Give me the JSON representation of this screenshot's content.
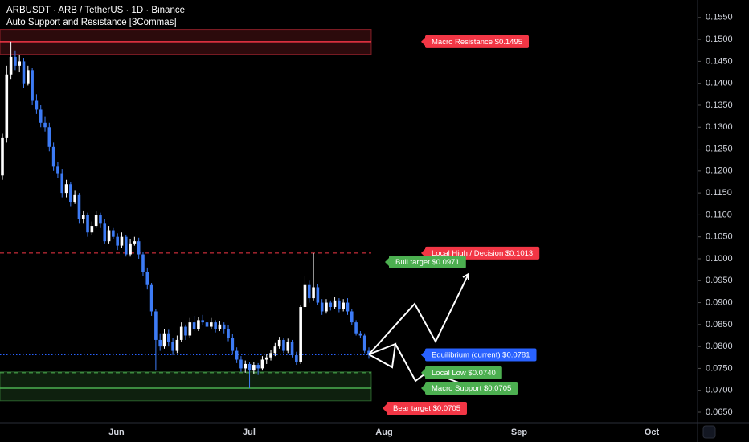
{
  "chart_data": {
    "type": "candlestick",
    "title": "ARBUSDT · ARB / TetherUS · 1D · Binance",
    "subtitle": "Auto Support and Resistance [3Commas]",
    "up_color": "#ffffff",
    "down_color": "#3d7bf5",
    "ohlc": [
      [
        0.119,
        0.1285,
        0.118,
        0.1275
      ],
      [
        0.1275,
        0.144,
        0.1265,
        0.142
      ],
      [
        0.142,
        0.1495,
        0.141,
        0.146
      ],
      [
        0.146,
        0.1475,
        0.143,
        0.144
      ],
      [
        0.144,
        0.1465,
        0.1425,
        0.145
      ],
      [
        0.145,
        0.1458,
        0.139,
        0.14
      ],
      [
        0.14,
        0.144,
        0.1395,
        0.143
      ],
      [
        0.143,
        0.1435,
        0.135,
        0.136
      ],
      [
        0.136,
        0.1375,
        0.133,
        0.134
      ],
      [
        0.134,
        0.135,
        0.13,
        0.131
      ],
      [
        0.131,
        0.1325,
        0.129,
        0.13
      ],
      [
        0.13,
        0.131,
        0.1245,
        0.1255
      ],
      [
        0.1255,
        0.1265,
        0.12,
        0.121
      ],
      [
        0.121,
        0.122,
        0.1185,
        0.1195
      ],
      [
        0.1195,
        0.1205,
        0.114,
        0.115
      ],
      [
        0.115,
        0.118,
        0.114,
        0.117
      ],
      [
        0.117,
        0.1175,
        0.112,
        0.113
      ],
      [
        0.113,
        0.1155,
        0.1125,
        0.1145
      ],
      [
        0.1145,
        0.115,
        0.108,
        0.109
      ],
      [
        0.109,
        0.111,
        0.108,
        0.11
      ],
      [
        0.11,
        0.1105,
        0.105,
        0.106
      ],
      [
        0.106,
        0.1085,
        0.1055,
        0.1075
      ],
      [
        0.1075,
        0.111,
        0.107,
        0.11
      ],
      [
        0.11,
        0.1105,
        0.107,
        0.108
      ],
      [
        0.108,
        0.109,
        0.1035,
        0.104
      ],
      [
        0.104,
        0.1075,
        0.1035,
        0.1065
      ],
      [
        0.1065,
        0.107,
        0.1045,
        0.105
      ],
      [
        0.105,
        0.1058,
        0.102,
        0.103
      ],
      [
        0.103,
        0.106,
        0.1025,
        0.105
      ],
      [
        0.105,
        0.1055,
        0.1005,
        0.101
      ],
      [
        0.101,
        0.1045,
        0.1005,
        0.1035
      ],
      [
        0.1035,
        0.105,
        0.103,
        0.104
      ],
      [
        0.104,
        0.1048,
        0.1,
        0.101
      ],
      [
        0.101,
        0.1015,
        0.096,
        0.097
      ],
      [
        0.097,
        0.098,
        0.093,
        0.094
      ],
      [
        0.094,
        0.0945,
        0.087,
        0.088
      ],
      [
        0.088,
        0.0885,
        0.0745,
        0.0815
      ],
      [
        0.0815,
        0.083,
        0.079,
        0.08
      ],
      [
        0.08,
        0.084,
        0.0795,
        0.083
      ],
      [
        0.083,
        0.0838,
        0.08,
        0.081
      ],
      [
        0.081,
        0.082,
        0.078,
        0.079
      ],
      [
        0.079,
        0.0825,
        0.0785,
        0.0815
      ],
      [
        0.0815,
        0.0855,
        0.081,
        0.0845
      ],
      [
        0.0845,
        0.085,
        0.0815,
        0.0825
      ],
      [
        0.0825,
        0.0865,
        0.082,
        0.0855
      ],
      [
        0.0855,
        0.087,
        0.0835,
        0.084
      ],
      [
        0.084,
        0.0868,
        0.0835,
        0.086
      ],
      [
        0.086,
        0.0872,
        0.0848,
        0.0855
      ],
      [
        0.0855,
        0.0862,
        0.0838,
        0.0845
      ],
      [
        0.0845,
        0.0865,
        0.084,
        0.0855
      ],
      [
        0.0855,
        0.086,
        0.0832,
        0.084
      ],
      [
        0.084,
        0.0858,
        0.0835,
        0.085
      ],
      [
        0.085,
        0.0855,
        0.083,
        0.084
      ],
      [
        0.084,
        0.0848,
        0.0812,
        0.082
      ],
      [
        0.082,
        0.0828,
        0.0782,
        0.079
      ],
      [
        0.079,
        0.0798,
        0.0762,
        0.077
      ],
      [
        0.077,
        0.0778,
        0.0742,
        0.075
      ],
      [
        0.075,
        0.0768,
        0.074,
        0.076
      ],
      [
        0.076,
        0.0765,
        0.0705,
        0.0745
      ],
      [
        0.0745,
        0.0765,
        0.0738,
        0.0758
      ],
      [
        0.0758,
        0.0762,
        0.0735,
        0.075
      ],
      [
        0.075,
        0.0778,
        0.0745,
        0.077
      ],
      [
        0.077,
        0.0782,
        0.076,
        0.0775
      ],
      [
        0.0775,
        0.0792,
        0.0768,
        0.0785
      ],
      [
        0.0785,
        0.0808,
        0.0778,
        0.08
      ],
      [
        0.08,
        0.0822,
        0.0795,
        0.0815
      ],
      [
        0.0815,
        0.082,
        0.0785,
        0.079
      ],
      [
        0.079,
        0.0818,
        0.0785,
        0.081
      ],
      [
        0.081,
        0.0815,
        0.0775,
        0.078
      ],
      [
        0.078,
        0.0788,
        0.0758,
        0.0765
      ],
      [
        0.0765,
        0.0895,
        0.076,
        0.089
      ],
      [
        0.089,
        0.096,
        0.0885,
        0.094
      ],
      [
        0.094,
        0.095,
        0.09,
        0.091
      ],
      [
        0.091,
        0.1013,
        0.0905,
        0.0935
      ],
      [
        0.0935,
        0.0942,
        0.0895,
        0.09
      ],
      [
        0.09,
        0.0908,
        0.0872,
        0.088
      ],
      [
        0.088,
        0.0908,
        0.0875,
        0.09
      ],
      [
        0.09,
        0.0905,
        0.0882,
        0.089
      ],
      [
        0.089,
        0.0912,
        0.0885,
        0.0905
      ],
      [
        0.0905,
        0.091,
        0.0878,
        0.0885
      ],
      [
        0.0885,
        0.0908,
        0.088,
        0.09
      ],
      [
        0.09,
        0.091,
        0.0872,
        0.088
      ],
      [
        0.088,
        0.0885,
        0.0848,
        0.0855
      ],
      [
        0.0855,
        0.086,
        0.0825,
        0.083
      ],
      [
        0.083,
        0.0835,
        0.082,
        0.0825
      ],
      [
        0.0825,
        0.083,
        0.0785,
        0.079
      ],
      [
        0.079,
        0.0798,
        0.0772,
        0.0781
      ]
    ],
    "ylim": [
      0.0628,
      0.159
    ],
    "yticks": [
      {
        "value": 0.065,
        "label": "0.0650"
      },
      {
        "value": 0.07,
        "label": "0.0700"
      },
      {
        "value": 0.075,
        "label": "0.0750"
      },
      {
        "value": 0.08,
        "label": "0.0800"
      },
      {
        "value": 0.085,
        "label": "0.0850"
      },
      {
        "value": 0.09,
        "label": "0.0900"
      },
      {
        "value": 0.095,
        "label": "0.0950"
      },
      {
        "value": 0.1,
        "label": "0.1000"
      },
      {
        "value": 0.105,
        "label": "0.1050"
      },
      {
        "value": 0.11,
        "label": "0.1100"
      },
      {
        "value": 0.115,
        "label": "0.1150"
      },
      {
        "value": 0.12,
        "label": "0.1200"
      },
      {
        "value": 0.125,
        "label": "0.1250"
      },
      {
        "value": 0.13,
        "label": "0.1300"
      },
      {
        "value": 0.135,
        "label": "0.1350"
      },
      {
        "value": 0.14,
        "label": "0.1400"
      },
      {
        "value": 0.145,
        "label": "0.1450"
      },
      {
        "value": 0.15,
        "label": "0.1500"
      },
      {
        "value": 0.155,
        "label": "0.1550"
      }
    ],
    "xticks": [
      "Jun",
      "Jul",
      "Aug",
      "Sep",
      "Oct"
    ],
    "zones": [
      {
        "from": 0.1466,
        "to": 0.1523,
        "color": "#f23645"
      },
      {
        "from": 0.0676,
        "to": 0.0742,
        "color": "#4caf50"
      }
    ],
    "levels": [
      {
        "label": "Macro Resistance $0.1495",
        "value": 0.1495,
        "color": "#f23645",
        "style": "solid"
      },
      {
        "label": "Local High / Decision $0.1013",
        "value": 0.1013,
        "color": "#f23645",
        "style": "dashed"
      },
      {
        "label": "Equilibrium (current) $0.0781",
        "value": 0.0781,
        "color": "#2962ff",
        "style": "dotted"
      },
      {
        "label": "Local Low $0.0740",
        "value": 0.074,
        "color": "#4caf50",
        "style": "dashed"
      },
      {
        "label": "Macro Support $0.0705",
        "value": 0.0705,
        "color": "#4caf50",
        "style": "solid"
      }
    ],
    "targets": [
      {
        "label": "Bull target $0.0971",
        "value": 0.0971,
        "color": "#4caf50"
      },
      {
        "label": "Bear target $0.0705",
        "value": 0.0705,
        "color": "#f23645"
      }
    ]
  }
}
